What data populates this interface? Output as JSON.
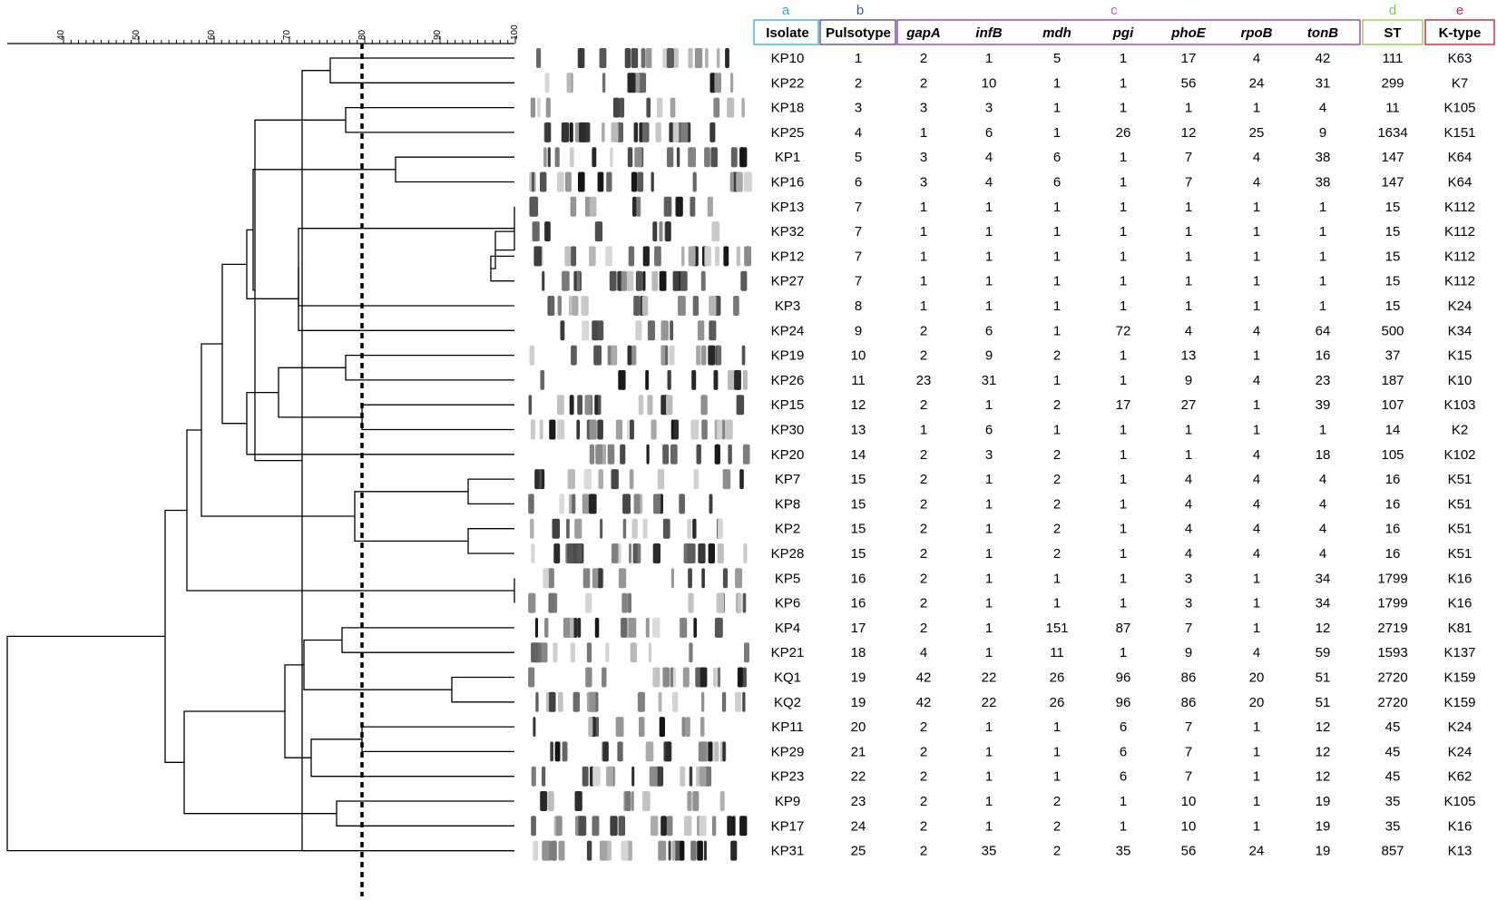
{
  "scale": {
    "ticks": [
      "40",
      "50",
      "60",
      "70",
      "80",
      "90",
      "100"
    ]
  },
  "group_letters": [
    {
      "id": "a",
      "text": "a",
      "color": "#29abe2"
    },
    {
      "id": "b",
      "text": "b",
      "color": "#3a57c4"
    },
    {
      "id": "c",
      "text": "c",
      "color": "#c45ac8"
    },
    {
      "id": "d",
      "text": "d",
      "color": "#8cc63f"
    },
    {
      "id": "e",
      "text": "e",
      "color": "#e0245e"
    }
  ],
  "header_colors": {
    "isolate": "#29abe2",
    "pulsotype": "#5b3aa8",
    "mlst": "#8b3a9c",
    "st": "#8cc63f",
    "ktype": "#c8102e"
  },
  "columns": [
    {
      "key": "isolate",
      "label": "Isolate",
      "italic": false
    },
    {
      "key": "pulsotype",
      "label": "Pulsotype",
      "italic": false
    },
    {
      "key": "gapA",
      "label": "gapA",
      "italic": true
    },
    {
      "key": "infB",
      "label": "infB",
      "italic": true
    },
    {
      "key": "mdh",
      "label": "mdh",
      "italic": true
    },
    {
      "key": "pgi",
      "label": "pgi",
      "italic": true
    },
    {
      "key": "phoE",
      "label": "phoE",
      "italic": true
    },
    {
      "key": "rpoB",
      "label": "rpoB",
      "italic": true
    },
    {
      "key": "tonB",
      "label": "tonB",
      "italic": true
    },
    {
      "key": "st",
      "label": "ST",
      "italic": false
    },
    {
      "key": "ktype",
      "label": "K-type",
      "italic": false
    }
  ],
  "rows": [
    [
      "KP10",
      "1",
      "2",
      "1",
      "5",
      "1",
      "17",
      "4",
      "42",
      "111",
      "K63"
    ],
    [
      "KP22",
      "2",
      "2",
      "10",
      "1",
      "1",
      "56",
      "24",
      "31",
      "299",
      "K7"
    ],
    [
      "KP18",
      "3",
      "3",
      "3",
      "1",
      "1",
      "1",
      "1",
      "4",
      "11",
      "K105"
    ],
    [
      "KP25",
      "4",
      "1",
      "6",
      "1",
      "26",
      "12",
      "25",
      "9",
      "1634",
      "K151"
    ],
    [
      "KP1",
      "5",
      "3",
      "4",
      "6",
      "1",
      "7",
      "4",
      "38",
      "147",
      "K64"
    ],
    [
      "KP16",
      "6",
      "3",
      "4",
      "6",
      "1",
      "7",
      "4",
      "38",
      "147",
      "K64"
    ],
    [
      "KP13",
      "7",
      "1",
      "1",
      "1",
      "1",
      "1",
      "1",
      "1",
      "15",
      "K112"
    ],
    [
      "KP32",
      "7",
      "1",
      "1",
      "1",
      "1",
      "1",
      "1",
      "1",
      "15",
      "K112"
    ],
    [
      "KP12",
      "7",
      "1",
      "1",
      "1",
      "1",
      "1",
      "1",
      "1",
      "15",
      "K112"
    ],
    [
      "KP27",
      "7",
      "1",
      "1",
      "1",
      "1",
      "1",
      "1",
      "1",
      "15",
      "K112"
    ],
    [
      "KP3",
      "8",
      "1",
      "1",
      "1",
      "1",
      "1",
      "1",
      "1",
      "15",
      "K24"
    ],
    [
      "KP24",
      "9",
      "2",
      "6",
      "1",
      "72",
      "4",
      "4",
      "64",
      "500",
      "K34"
    ],
    [
      "KP19",
      "10",
      "2",
      "9",
      "2",
      "1",
      "13",
      "1",
      "16",
      "37",
      "K15"
    ],
    [
      "KP26",
      "11",
      "23",
      "31",
      "1",
      "1",
      "9",
      "4",
      "23",
      "187",
      "K10"
    ],
    [
      "KP15",
      "12",
      "2",
      "1",
      "2",
      "17",
      "27",
      "1",
      "39",
      "107",
      "K103"
    ],
    [
      "KP30",
      "13",
      "1",
      "6",
      "1",
      "1",
      "1",
      "1",
      "1",
      "14",
      "K2"
    ],
    [
      "KP20",
      "14",
      "2",
      "3",
      "2",
      "1",
      "1",
      "4",
      "18",
      "105",
      "K102"
    ],
    [
      "KP7",
      "15",
      "2",
      "1",
      "2",
      "1",
      "4",
      "4",
      "4",
      "16",
      "K51"
    ],
    [
      "KP8",
      "15",
      "2",
      "1",
      "2",
      "1",
      "4",
      "4",
      "4",
      "16",
      "K51"
    ],
    [
      "KP2",
      "15",
      "2",
      "1",
      "2",
      "1",
      "4",
      "4",
      "4",
      "16",
      "K51"
    ],
    [
      "KP28",
      "15",
      "2",
      "1",
      "2",
      "1",
      "4",
      "4",
      "4",
      "16",
      "K51"
    ],
    [
      "KP5",
      "16",
      "2",
      "1",
      "1",
      "1",
      "3",
      "1",
      "34",
      "1799",
      "K16"
    ],
    [
      "KP6",
      "16",
      "2",
      "1",
      "1",
      "1",
      "3",
      "1",
      "34",
      "1799",
      "K16"
    ],
    [
      "KP4",
      "17",
      "2",
      "1",
      "151",
      "87",
      "7",
      "1",
      "12",
      "2719",
      "K81"
    ],
    [
      "KP21",
      "18",
      "4",
      "1",
      "11",
      "1",
      "9",
      "4",
      "59",
      "1593",
      "K137"
    ],
    [
      "KQ1",
      "19",
      "42",
      "22",
      "26",
      "96",
      "86",
      "20",
      "51",
      "2720",
      "K159"
    ],
    [
      "KQ2",
      "19",
      "42",
      "22",
      "26",
      "96",
      "86",
      "20",
      "51",
      "2720",
      "K159"
    ],
    [
      "KP11",
      "20",
      "2",
      "1",
      "1",
      "6",
      "7",
      "1",
      "12",
      "45",
      "K24"
    ],
    [
      "KP29",
      "21",
      "2",
      "1",
      "1",
      "6",
      "7",
      "1",
      "12",
      "45",
      "K24"
    ],
    [
      "KP23",
      "22",
      "2",
      "1",
      "1",
      "6",
      "7",
      "1",
      "12",
      "45",
      "K62"
    ],
    [
      "KP9",
      "23",
      "2",
      "1",
      "2",
      "1",
      "10",
      "1",
      "19",
      "35",
      "K105"
    ],
    [
      "KP17",
      "24",
      "2",
      "1",
      "2",
      "1",
      "10",
      "1",
      "19",
      "35",
      "K16"
    ],
    [
      "KP31",
      "25",
      "2",
      "35",
      "2",
      "35",
      "56",
      "24",
      "19",
      "857",
      "K13"
    ]
  ]
}
